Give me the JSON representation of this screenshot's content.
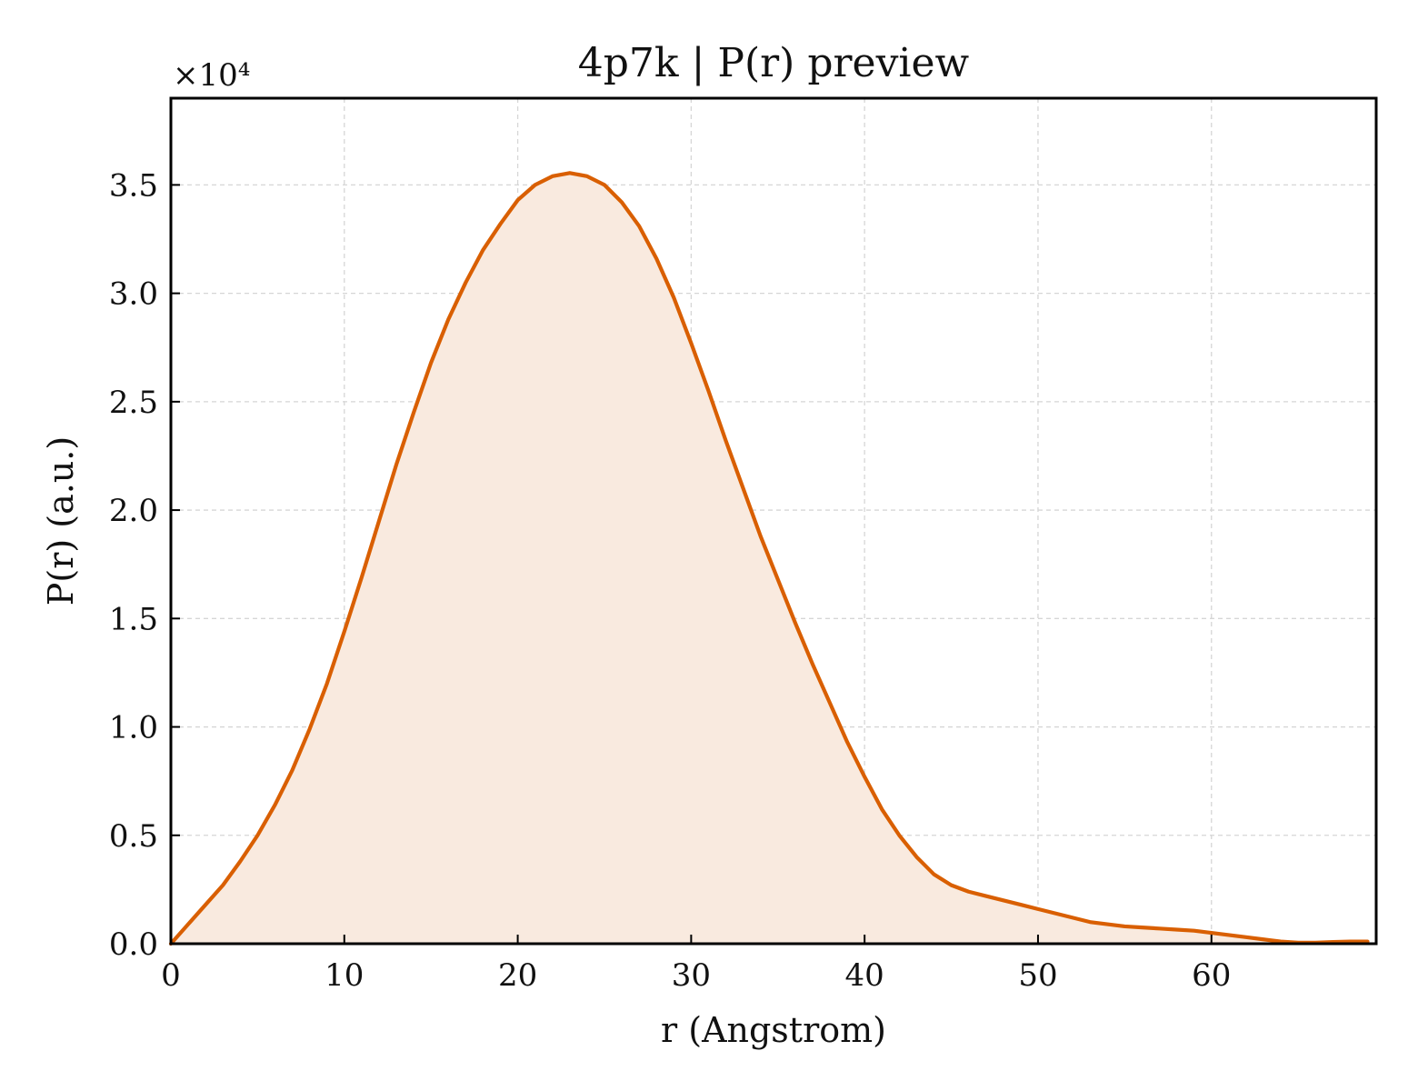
{
  "chart_data": {
    "type": "area",
    "title": "4p7k | P(r) preview",
    "xlabel": "r (Angstrom)",
    "ylabel": "P(r) (a.u.)",
    "y_multiplier": "×10⁴",
    "xlim": [
      0,
      69.5
    ],
    "ylim": [
      0,
      3.9
    ],
    "xticks": [
      0,
      10,
      20,
      30,
      40,
      50,
      60
    ],
    "yticks": [
      0.0,
      0.5,
      1.0,
      1.5,
      2.0,
      2.5,
      3.0,
      3.5
    ],
    "xtick_labels": [
      "0",
      "10",
      "20",
      "30",
      "40",
      "50",
      "60"
    ],
    "ytick_labels": [
      "0.0",
      "0.5",
      "1.0",
      "1.5",
      "2.0",
      "2.5",
      "3.0",
      "3.5"
    ],
    "grid": true,
    "line_color": "#d95f02",
    "fill_color": "#f9eadf",
    "x": [
      0,
      1,
      2,
      3,
      4,
      5,
      6,
      7,
      8,
      9,
      10,
      11,
      12,
      13,
      14,
      15,
      16,
      17,
      18,
      19,
      20,
      21,
      22,
      23,
      24,
      25,
      26,
      27,
      28,
      29,
      30,
      31,
      32,
      33,
      34,
      35,
      36,
      37,
      38,
      39,
      40,
      41,
      42,
      43,
      44,
      45,
      46,
      47,
      48,
      49,
      50,
      51,
      52,
      53,
      54,
      55,
      56,
      57,
      58,
      59,
      60,
      61,
      62,
      63,
      64,
      65,
      66,
      67,
      68,
      69
    ],
    "y": [
      0.0,
      0.09,
      0.18,
      0.27,
      0.38,
      0.5,
      0.64,
      0.8,
      0.99,
      1.2,
      1.44,
      1.69,
      1.95,
      2.21,
      2.45,
      2.68,
      2.88,
      3.05,
      3.2,
      3.32,
      3.43,
      3.5,
      3.54,
      3.555,
      3.54,
      3.5,
      3.42,
      3.31,
      3.16,
      2.98,
      2.77,
      2.55,
      2.32,
      2.1,
      1.88,
      1.68,
      1.48,
      1.29,
      1.11,
      0.93,
      0.77,
      0.62,
      0.5,
      0.4,
      0.32,
      0.27,
      0.24,
      0.22,
      0.2,
      0.18,
      0.16,
      0.14,
      0.12,
      0.1,
      0.09,
      0.08,
      0.075,
      0.07,
      0.065,
      0.06,
      0.05,
      0.04,
      0.03,
      0.02,
      0.01,
      0.005,
      0.005,
      0.008,
      0.01,
      0.01
    ]
  }
}
